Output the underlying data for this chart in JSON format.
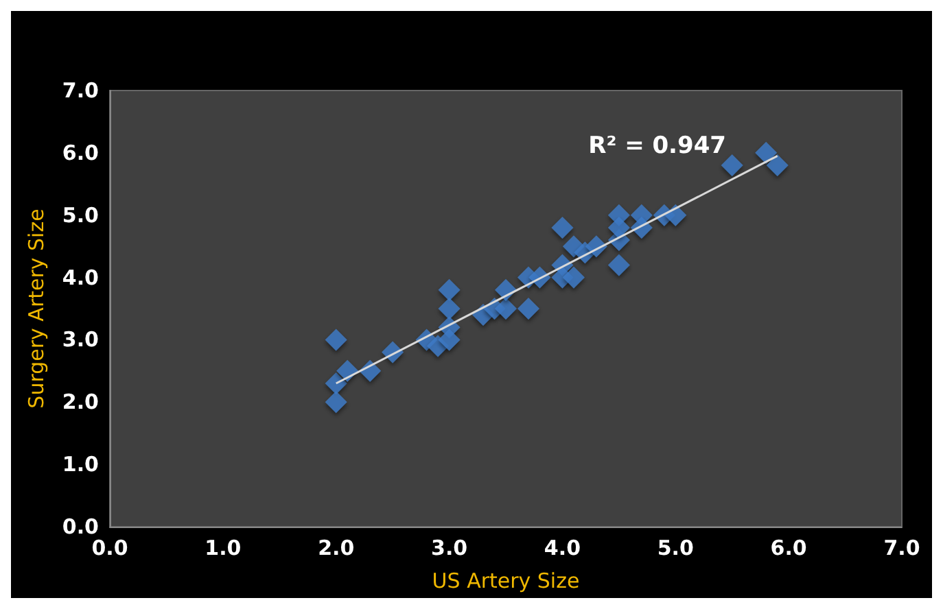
{
  "chart_data": {
    "type": "scatter",
    "xlabel": "US Artery Size",
    "ylabel": "Surgery Artery Size",
    "annotations": [
      "R² = 0.947"
    ],
    "xlim": [
      0,
      7
    ],
    "ylim": [
      0,
      7
    ],
    "xticks": [
      {
        "value": 0,
        "label": "0.0"
      },
      {
        "value": 1,
        "label": "1.0"
      },
      {
        "value": 2,
        "label": "2.0"
      },
      {
        "value": 3,
        "label": "3.0"
      },
      {
        "value": 4,
        "label": "4.0"
      },
      {
        "value": 5,
        "label": "5.0"
      },
      {
        "value": 6,
        "label": "6.0"
      },
      {
        "value": 7,
        "label": "7.0"
      }
    ],
    "yticks": [
      {
        "value": 0,
        "label": "0.0"
      },
      {
        "value": 1,
        "label": "1.0"
      },
      {
        "value": 2,
        "label": "2.0"
      },
      {
        "value": 3,
        "label": "3.0"
      },
      {
        "value": 4,
        "label": "4.0"
      },
      {
        "value": 5,
        "label": "5.0"
      },
      {
        "value": 6,
        "label": "6.0"
      },
      {
        "value": 7,
        "label": "7.0"
      }
    ],
    "grid": false,
    "marker": "diamond",
    "series": [
      {
        "color": "#3d7cc9",
        "x": [
          2.0,
          2.0,
          2.0,
          2.1,
          2.3,
          2.5,
          2.8,
          2.9,
          3.0,
          3.0,
          3.0,
          3.0,
          3.3,
          3.4,
          3.5,
          3.5,
          3.7,
          3.7,
          3.8,
          4.0,
          4.0,
          4.0,
          4.1,
          4.1,
          4.2,
          4.3,
          4.5,
          4.5,
          4.5,
          4.5,
          4.7,
          4.7,
          4.9,
          5.0,
          5.5,
          5.8,
          5.9
        ],
        "values": [
          3.0,
          2.3,
          2.0,
          2.5,
          2.5,
          2.8,
          3.0,
          2.9,
          3.8,
          3.5,
          3.2,
          3.0,
          3.4,
          3.5,
          3.5,
          3.8,
          4.0,
          3.5,
          4.0,
          4.8,
          4.2,
          4.0,
          4.0,
          4.5,
          4.4,
          4.5,
          5.0,
          4.2,
          4.6,
          4.8,
          5.0,
          4.8,
          5.0,
          5.0,
          5.8,
          6.0,
          5.8
        ]
      },
      {
        "type": "line",
        "color": "#d9d9d9",
        "marker": "none",
        "x": [
          2.0,
          5.9
        ],
        "values": [
          2.3,
          5.95
        ]
      }
    ]
  }
}
